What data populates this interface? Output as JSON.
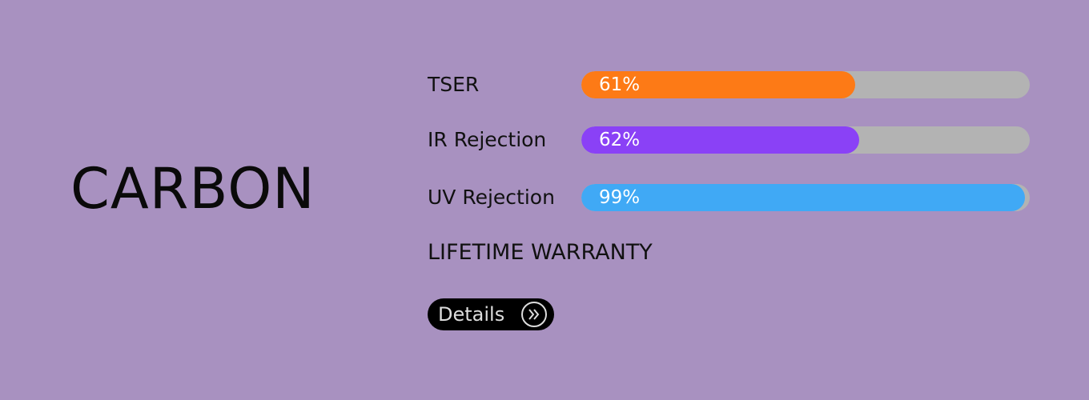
{
  "product": {
    "name": "CARBON",
    "xlim": [
      0,
      100
    ],
    "metrics": [
      {
        "label": "TSER",
        "value": 61,
        "value_label": "61%",
        "color": "#fd7a16"
      },
      {
        "label": "IR Rejection",
        "value": 62,
        "value_label": "62%",
        "color": "#8a41f6"
      },
      {
        "label": "UV Rejection",
        "value": 99,
        "value_label": "99%",
        "color": "#40a9f5"
      }
    ],
    "warranty": "LIFETIME WARRANTY",
    "button": "Details"
  }
}
